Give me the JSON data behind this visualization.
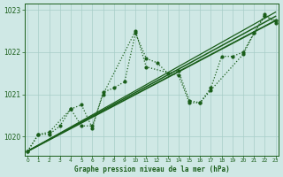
{
  "bg_color": "#cfe8e5",
  "grid_color": "#a8cdc8",
  "line_color": "#1a5e1a",
  "xlabel": "Graphe pression niveau de la mer (hPa)",
  "ylim": [
    1019.55,
    1023.15
  ],
  "xlim": [
    -0.3,
    23.3
  ],
  "yticks": [
    1020,
    1021,
    1022,
    1023
  ],
  "xticks": [
    0,
    1,
    2,
    3,
    4,
    5,
    6,
    7,
    8,
    9,
    10,
    11,
    12,
    13,
    14,
    15,
    16,
    17,
    18,
    19,
    20,
    21,
    22,
    23
  ],
  "line1": {
    "x": [
      0,
      1,
      2,
      3,
      4,
      5,
      6,
      7,
      8,
      9,
      10,
      11,
      12,
      13,
      14,
      15,
      16,
      17,
      18,
      19,
      20,
      21,
      22,
      23
    ],
    "y": [
      1019.65,
      1020.05,
      1020.05,
      1020.25,
      1020.65,
      1020.75,
      1020.2,
      1021.05,
      1021.15,
      1021.3,
      1022.45,
      1021.85,
      1021.75,
      1021.5,
      1021.55,
      1020.85,
      1020.8,
      1021.15,
      1021.9,
      1021.9,
      1022.0,
      1022.45,
      1022.85,
      1022.75
    ]
  },
  "line2": {
    "x": [
      0,
      1,
      2,
      4,
      5,
      6,
      7,
      10,
      11,
      14,
      15,
      16,
      17,
      20,
      21,
      22,
      23
    ],
    "y": [
      1019.65,
      1020.05,
      1020.1,
      1020.65,
      1020.25,
      1020.25,
      1021.0,
      1022.5,
      1021.65,
      1021.45,
      1020.8,
      1020.8,
      1021.1,
      1021.95,
      1022.45,
      1022.9,
      1022.7
    ]
  },
  "line3": {
    "x": [
      0,
      23
    ],
    "y": [
      1019.65,
      1022.75
    ]
  },
  "line4": {
    "x": [
      0,
      23
    ],
    "y": [
      1019.65,
      1022.85
    ]
  },
  "line5": {
    "x": [
      0,
      23
    ],
    "y": [
      1019.65,
      1022.95
    ]
  }
}
